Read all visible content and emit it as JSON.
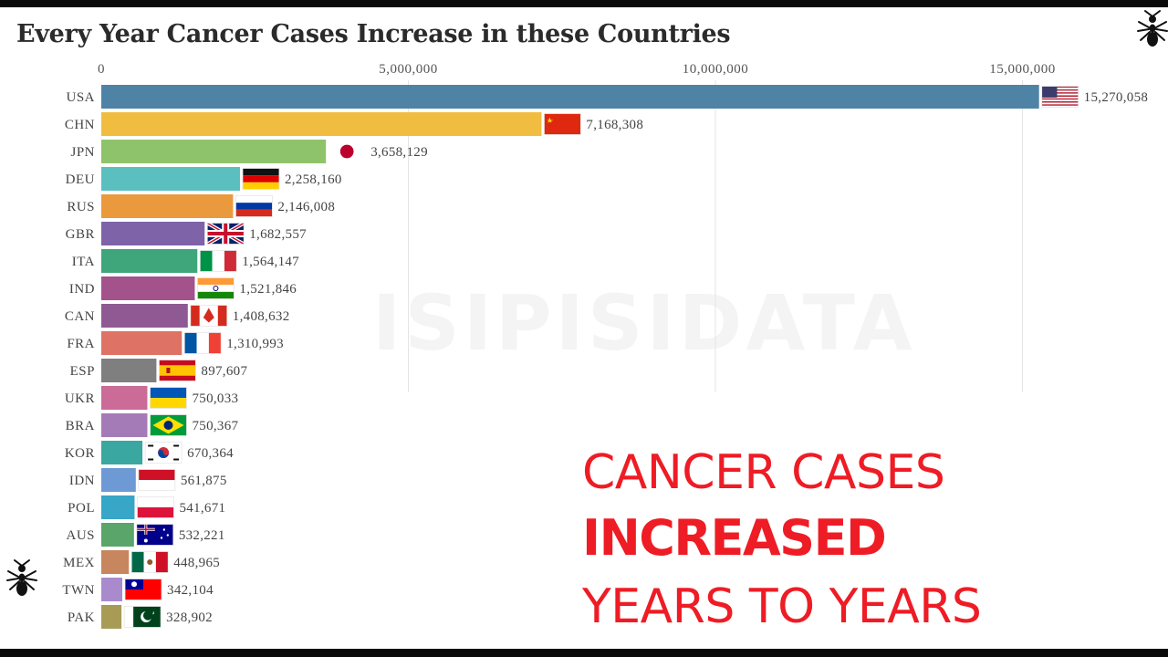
{
  "chart_data": {
    "type": "bar",
    "orientation": "horizontal",
    "title": "Every Year Cancer Cases Increase in these Countries",
    "xlim": [
      0,
      16500000
    ],
    "grid": true,
    "x_ticks": [
      0,
      5000000,
      10000000,
      15000000
    ],
    "x_tick_labels": [
      "0",
      "5,000,000",
      "10,000,000",
      "15,000,000"
    ],
    "categories": [
      "USA",
      "CHN",
      "JPN",
      "DEU",
      "RUS",
      "GBR",
      "ITA",
      "IND",
      "CAN",
      "FRA",
      "ESP",
      "UKR",
      "BRA",
      "KOR",
      "IDN",
      "POL",
      "AUS",
      "MEX",
      "TWN",
      "PAK"
    ],
    "values": [
      15270058,
      7168308,
      3658129,
      2258160,
      2146008,
      1682557,
      1564147,
      1521846,
      1408632,
      1310993,
      897607,
      750033,
      750367,
      670364,
      561875,
      541671,
      532221,
      448965,
      342104,
      328902
    ],
    "value_labels": [
      "15,270,058",
      "7,168,308",
      "3,658,129",
      "2,258,160",
      "2,146,008",
      "1,682,557",
      "1,564,147",
      "1,521,846",
      "1,408,632",
      "1,310,993",
      "897,607",
      "750,033",
      "750,367",
      "670,364",
      "561,875",
      "541,671",
      "532,221",
      "448,965",
      "342,104",
      "328,902"
    ],
    "colors": [
      "#4f83a6",
      "#f1bd41",
      "#8fc36b",
      "#5bbfc0",
      "#ea9a3c",
      "#7e63a8",
      "#3ea67a",
      "#a3528c",
      "#8f5a93",
      "#de7264",
      "#7f7f7f",
      "#cb6b97",
      "#a57bb7",
      "#3aa7a0",
      "#6d9ad4",
      "#37a6c7",
      "#5aa56a",
      "#c7865d",
      "#a98bcd",
      "#a89b55"
    ],
    "flags": [
      "usa-flag",
      "china-flag",
      "japan-flag",
      "germany-flag",
      "russia-flag",
      "uk-flag",
      "italy-flag",
      "india-flag",
      "canada-flag",
      "france-flag",
      "spain-flag",
      "ukraine-flag",
      "brazil-flag",
      "south-korea-flag",
      "indonesia-flag",
      "poland-flag",
      "australia-flag",
      "mexico-flag",
      "taiwan-flag",
      "pakistan-flag"
    ]
  },
  "watermark": "ISIPISIDATA",
  "overlay": {
    "line1": "CANCER CASES",
    "line2": "INCREASED",
    "line3": "YEARS TO YEARS",
    "color": "#ee1c25"
  },
  "icons": [
    "ant-icon",
    "ant-icon"
  ]
}
